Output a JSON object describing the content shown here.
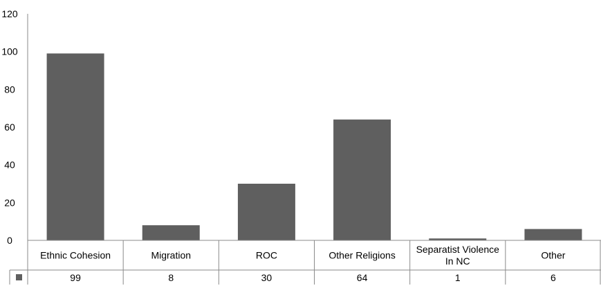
{
  "chart_data": {
    "type": "bar",
    "categories": [
      [
        "Ethnic Cohesion"
      ],
      [
        "Migration"
      ],
      [
        "ROC"
      ],
      [
        "Other Religions"
      ],
      [
        "Separatist Violence",
        "In NC"
      ],
      [
        "Other"
      ]
    ],
    "series": [
      {
        "values": [
          99,
          8,
          30,
          64,
          1,
          6
        ]
      }
    ],
    "ylim": [
      0,
      120
    ],
    "yticks": [
      0,
      20,
      40,
      60,
      80,
      100,
      120
    ],
    "grid": false,
    "legend": "data table below x-axis",
    "data_table": true,
    "colors": {
      "bar": "#5f5f5f",
      "axis": "#8a8a8a",
      "legend_key": "#5f5f5f"
    }
  }
}
